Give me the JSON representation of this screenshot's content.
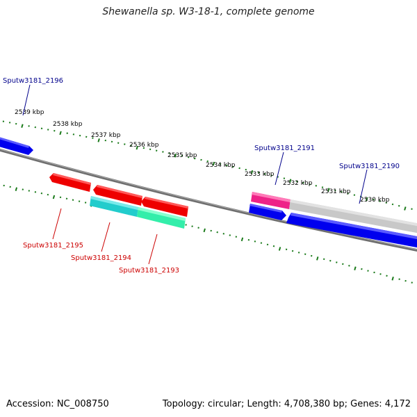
{
  "title": "Shewanella sp. W3-18-1, complete genome",
  "footer": {
    "accession": "Accession: NC_008750",
    "topology": "Topology: circular; Length: 4,708,380 bp; Genes: 4,172"
  },
  "scale": {
    "unit": "kbp",
    "ticks": [
      "2539 kbp",
      "2538 kbp",
      "2537 kbp",
      "2536 kbp",
      "2535 kbp",
      "2534 kbp",
      "2533 kbp",
      "2532 kbp",
      "2531 kbp",
      "2530 kbp"
    ]
  },
  "colors": {
    "backbone": "#7a7a7a",
    "tick": "#1a7a1a",
    "forward_label": "#00008b",
    "reverse_label": "#cc0000",
    "cds_blue": "#0000ee",
    "cds_red": "#ee0000",
    "cds_cyan": "#22cccc",
    "cds_green": "#33eeaa",
    "cds_magenta": "#ee2288",
    "cds_gray": "#c8c8c8"
  },
  "labels": {
    "forward": [
      "Sputw3181_2196",
      "Sputw3181_2191",
      "Sputw3181_2190"
    ],
    "reverse": [
      "Sputw3181_2195",
      "Sputw3181_2194",
      "Sputw3181_2193"
    ]
  }
}
